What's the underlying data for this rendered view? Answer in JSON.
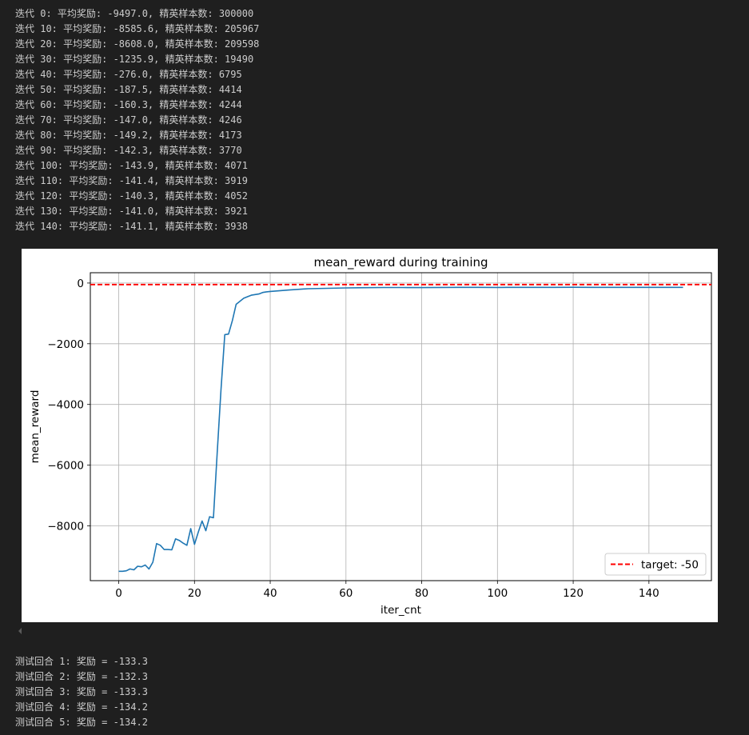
{
  "training_log": [
    "迭代 0: 平均奖励: -9497.0, 精英样本数: 300000",
    "迭代 10: 平均奖励: -8585.6, 精英样本数: 205967",
    "迭代 20: 平均奖励: -8608.0, 精英样本数: 209598",
    "迭代 30: 平均奖励: -1235.9, 精英样本数: 19490",
    "迭代 40: 平均奖励: -276.0, 精英样本数: 6795",
    "迭代 50: 平均奖励: -187.5, 精英样本数: 4414",
    "迭代 60: 平均奖励: -160.3, 精英样本数: 4244",
    "迭代 70: 平均奖励: -147.0, 精英样本数: 4246",
    "迭代 80: 平均奖励: -149.2, 精英样本数: 4173",
    "迭代 90: 平均奖励: -142.3, 精英样本数: 3770",
    "迭代 100: 平均奖励: -143.9, 精英样本数: 4071",
    "迭代 110: 平均奖励: -141.4, 精英样本数: 3919",
    "迭代 120: 平均奖励: -140.3, 精英样本数: 4052",
    "迭代 130: 平均奖励: -141.0, 精英样本数: 3921",
    "迭代 140: 平均奖励: -141.1, 精英样本数: 3938"
  ],
  "test_log": [
    "测试回合 1: 奖励 = -133.3",
    "测试回合 2: 奖励 = -132.3",
    "测试回合 3: 奖励 = -133.3",
    "测试回合 4: 奖励 = -134.2",
    "测试回合 5: 奖励 = -134.2"
  ],
  "chart_data": {
    "type": "line",
    "title": "mean_reward during training",
    "xlabel": "iter_cnt",
    "ylabel": "mean_reward",
    "xlim": [
      -7.5,
      156.5
    ],
    "ylim": [
      -9805,
      340
    ],
    "xticks": [
      0,
      20,
      40,
      60,
      80,
      100,
      120,
      140
    ],
    "xtick_labels": [
      "0",
      "20",
      "40",
      "60",
      "80",
      "100",
      "120",
      "140"
    ],
    "yticks": [
      0,
      -2000,
      -4000,
      -6000,
      -8000
    ],
    "ytick_labels": [
      "0",
      "−2000",
      "−4000",
      "−6000",
      "−8000"
    ],
    "grid": true,
    "legend_position": "lower right",
    "series": [
      {
        "color": "#1f77b4",
        "x": [
          0,
          1,
          2,
          3,
          4,
          5,
          6,
          7,
          8,
          9,
          10,
          11,
          12,
          13,
          14,
          15,
          16,
          17,
          18,
          19,
          20,
          21,
          22,
          23,
          24,
          25,
          26,
          27,
          28,
          29,
          30,
          31,
          32,
          33,
          34,
          35,
          36,
          37,
          38,
          39,
          40,
          45,
          50,
          55,
          60,
          65,
          70,
          75,
          80,
          85,
          90,
          95,
          100,
          105,
          110,
          115,
          120,
          125,
          130,
          135,
          140,
          145,
          149
        ],
        "y": [
          -9497,
          -9497,
          -9480,
          -9420,
          -9450,
          -9330,
          -9350,
          -9290,
          -9420,
          -9200,
          -8586,
          -8640,
          -8780,
          -8780,
          -8790,
          -8430,
          -8480,
          -8570,
          -8640,
          -8090,
          -8608,
          -8210,
          -7840,
          -8160,
          -7700,
          -7730,
          -5600,
          -3500,
          -1700,
          -1680,
          -1236,
          -700,
          -600,
          -500,
          -450,
          -400,
          -380,
          -360,
          -310,
          -290,
          -276,
          -230,
          -188,
          -175,
          -160,
          -152,
          -147,
          -148,
          -149,
          -146,
          -142,
          -143,
          -144,
          -142,
          -141,
          -141,
          -140,
          -141,
          -141,
          -141,
          -141,
          -141,
          -141
        ]
      },
      {
        "name": "target: -50",
        "type": "hline",
        "color": "#ff0000",
        "dash": "dashed",
        "y": -50
      }
    ]
  }
}
